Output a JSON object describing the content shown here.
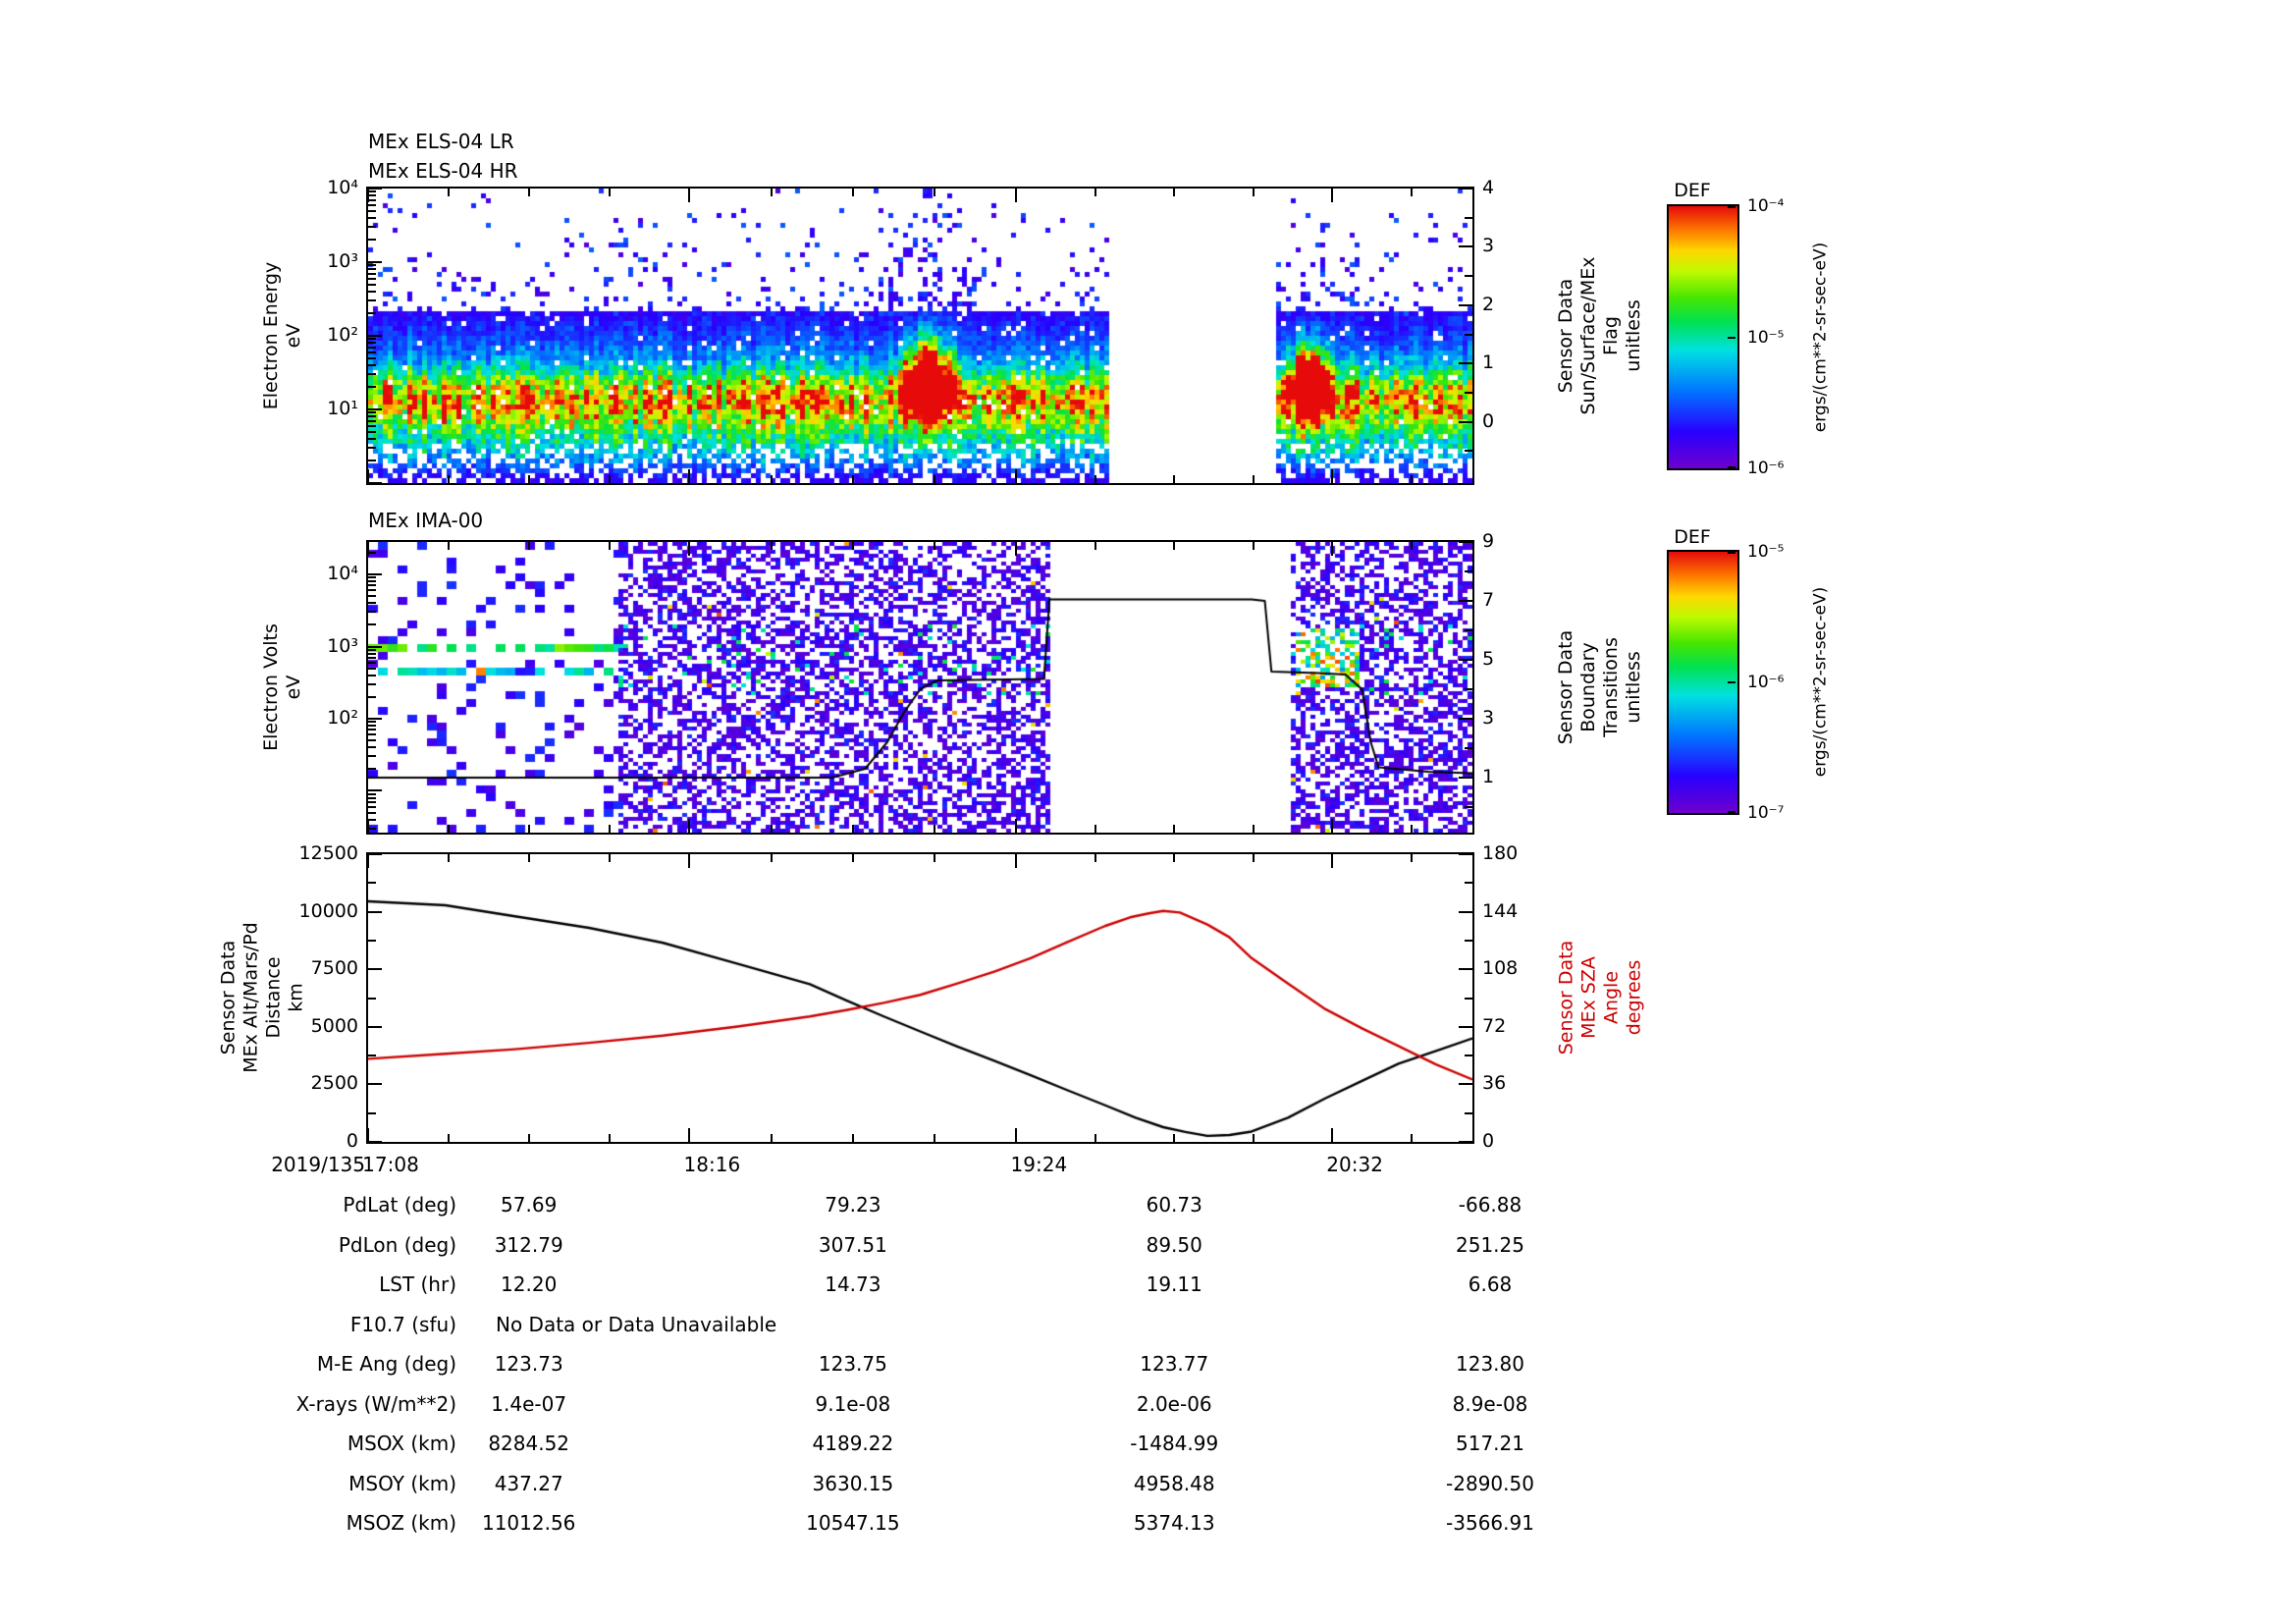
{
  "page": {
    "bg": "#ffffff"
  },
  "colormap": [
    "#6e00cd",
    "#2800ff",
    "#0078ff",
    "#00e1e1",
    "#00e150",
    "#46e600",
    "#befa00",
    "#ffd700",
    "#ff8200",
    "#e60a0a"
  ],
  "els": {
    "titles": [
      "MEx ELS-04 LR",
      "MEx ELS-04 HR"
    ],
    "ylabel": [
      "Electron Energy",
      "eV"
    ],
    "yticks": [
      "10⁴",
      "10³",
      "10²",
      "10¹"
    ],
    "right_label": [
      "Sensor Data",
      "Sun/Surface/MEx",
      "Flag",
      "unitless"
    ],
    "right_ticks": [
      "4",
      "3",
      "2",
      "1",
      "0"
    ]
  },
  "ima": {
    "title": "MEx IMA-00",
    "ylabel": [
      "Electron Volts",
      "eV"
    ],
    "yticks": [
      "10⁴",
      "10³",
      "10²"
    ],
    "right_label": [
      "Sensor Data",
      "Boundary",
      "Transitions",
      "unitless"
    ],
    "right_ticks": [
      "9",
      "7",
      "5",
      "3",
      "1"
    ]
  },
  "dist": {
    "left_label": [
      "Sensor Data",
      "MEx Alt/Mars/Pd",
      "Distance",
      "km"
    ],
    "yticks": [
      "12500",
      "10000",
      "7500",
      "5000",
      "2500",
      "0"
    ],
    "right_label": [
      "Sensor Data",
      "MEx SZA",
      "Angle",
      "degrees"
    ],
    "right_ticks": [
      "180",
      "144",
      "108",
      "72",
      "36",
      "0"
    ],
    "right_color": "#cc0000"
  },
  "xaxis": {
    "date": "2019/135",
    "ticks": [
      "17:08",
      "18:16",
      "19:24",
      "20:32"
    ],
    "fractions": [
      0,
      0.291,
      0.587,
      0.873
    ]
  },
  "colorbars": [
    {
      "title": "DEF",
      "ticks": [
        "10⁻⁴",
        "10⁻⁵",
        "10⁻⁶"
      ],
      "unit": "ergs/(cm**2-sr-sec-eV)"
    },
    {
      "title": "DEF",
      "ticks": [
        "10⁻⁵",
        "10⁻⁶",
        "10⁻⁷"
      ],
      "unit": "ergs/(cm**2-sr-sec-eV)"
    }
  ],
  "table": {
    "rows": [
      {
        "label": "PdLat (deg)",
        "values": [
          "57.69",
          "79.23",
          "60.73",
          "-66.88"
        ]
      },
      {
        "label": "PdLon (deg)",
        "values": [
          "312.79",
          "307.51",
          "89.50",
          "251.25"
        ]
      },
      {
        "label": "LST (hr)",
        "values": [
          "12.20",
          "14.73",
          "19.11",
          "6.68"
        ]
      },
      {
        "label": "F10.7 (sfu)",
        "values": [
          "No Data or Data Unavailable"
        ],
        "span": true
      },
      {
        "label": "M-E Ang (deg)",
        "values": [
          "123.73",
          "123.75",
          "123.77",
          "123.80"
        ]
      },
      {
        "label": "X-rays (W/m**2)",
        "values": [
          "1.4e-07",
          "9.1e-08",
          "2.0e-06",
          "8.9e-08"
        ]
      },
      {
        "label": "MSOX (km)",
        "values": [
          "8284.52",
          "4189.22",
          "-1484.99",
          "517.21"
        ]
      },
      {
        "label": "MSOY (km)",
        "values": [
          "437.27",
          "3630.15",
          "4958.48",
          "-2890.50"
        ]
      },
      {
        "label": "MSOZ (km)",
        "values": [
          "11012.56",
          "10547.15",
          "5374.13",
          "-3566.91"
        ]
      }
    ]
  },
  "chart_data": [
    {
      "type": "heatmap",
      "title": "MEx ELS-04 LR / MEx ELS-04 HR",
      "ylabel": "Electron Energy (eV)",
      "yscale": "log",
      "yrange": [
        1,
        10000
      ],
      "xticks": [
        "17:08",
        "18:16",
        "19:24",
        "20:32"
      ],
      "zunits": "ergs/(cm**2-sr-sec-eV)",
      "zrange": [
        1e-06,
        0.0001
      ],
      "model": {
        "gap": [
          0.671,
          0.822
        ],
        "band": [
          {
            "c": 1.12,
            "w": 0.4,
            "a": 0.62
          },
          {
            "c": 1.6,
            "w": 0.85,
            "a": 0.26
          },
          {
            "c": 0.5,
            "w": 0.45,
            "a": 0.33
          }
        ],
        "blobs": [
          {
            "x": 0.507,
            "xw": 0.018,
            "c": 1.55,
            "cw": 0.55,
            "a": 2.8
          },
          {
            "x": 0.853,
            "xw": 0.015,
            "c": 1.45,
            "cw": 0.5,
            "a": 2.6
          }
        ],
        "speckle": {
          "p0": 0.3,
          "decay": 0.75
        }
      }
    },
    {
      "type": "heatmap",
      "title": "MEx IMA-00",
      "ylabel": "Electron Volts (eV)",
      "yscale": "log",
      "yrange": [
        2.6,
        28000
      ],
      "zunits": "ergs/(cm**2-sr-sec-eV)",
      "zrange": [
        1e-07,
        1e-05
      ],
      "model": {
        "gap": [
          0.618,
          0.834
        ],
        "left_end": 0.225,
        "lines": [
          {
            "c": 3.02,
            "w": 0.08,
            "p": 0.78,
            "v0": 0.45,
            "v1": 0.72,
            "red": 0.05
          },
          {
            "c": 2.67,
            "w": 0.08,
            "p": 0.6,
            "v0": 0.35,
            "v1": 0.55,
            "red": 0.1
          }
        ],
        "cluster": {
          "x": [
            0.838,
            0.9
          ],
          "c": 2.85,
          "w": 0.4,
          "p": 0.55
        }
      },
      "boundary_line": {
        "name": "Sensor Data Boundary Transitions",
        "axis": "right",
        "range": [
          0,
          9
        ],
        "points": [
          [
            0,
            1.0
          ],
          [
            0.42,
            1.0
          ],
          [
            0.45,
            1.3
          ],
          [
            0.47,
            2.2
          ],
          [
            0.485,
            3.2
          ],
          [
            0.5,
            4.0
          ],
          [
            0.515,
            4.3
          ],
          [
            0.612,
            4.35
          ],
          [
            0.617,
            7.05
          ],
          [
            0.8,
            7.05
          ],
          [
            0.812,
            7.0
          ],
          [
            0.818,
            4.6
          ],
          [
            0.86,
            4.55
          ],
          [
            0.885,
            4.5
          ],
          [
            0.9,
            4.0
          ],
          [
            0.908,
            2.2
          ],
          [
            0.915,
            1.35
          ],
          [
            0.96,
            1.2
          ],
          [
            1,
            1.15
          ]
        ]
      }
    },
    {
      "type": "line",
      "ylim_left": [
        0,
        12500
      ],
      "ylim_right": [
        0,
        180
      ],
      "series": [
        {
          "name": "MEx Alt/Mars/Pd Distance (km)",
          "axis": "left",
          "color": "#000000",
          "points": [
            [
              0,
              10450
            ],
            [
              0.07,
              10280
            ],
            [
              0.133,
              9800
            ],
            [
              0.2,
              9300
            ],
            [
              0.267,
              8650
            ],
            [
              0.33,
              7800
            ],
            [
              0.4,
              6850
            ],
            [
              0.433,
              6150
            ],
            [
              0.467,
              5450
            ],
            [
              0.5,
              4800
            ],
            [
              0.533,
              4150
            ],
            [
              0.567,
              3520
            ],
            [
              0.6,
              2900
            ],
            [
              0.633,
              2250
            ],
            [
              0.667,
              1600
            ],
            [
              0.695,
              1050
            ],
            [
              0.72,
              640
            ],
            [
              0.74,
              430
            ],
            [
              0.76,
              260
            ],
            [
              0.78,
              300
            ],
            [
              0.8,
              450
            ],
            [
              0.833,
              1050
            ],
            [
              0.867,
              1900
            ],
            [
              0.9,
              2650
            ],
            [
              0.933,
              3400
            ],
            [
              0.967,
              3950
            ],
            [
              1,
              4500
            ]
          ]
        },
        {
          "name": "MEx SZA Angle (degrees)",
          "axis": "right",
          "color": "#cc0000",
          "points": [
            [
              0,
              52
            ],
            [
              0.067,
              55
            ],
            [
              0.133,
              58
            ],
            [
              0.2,
              62
            ],
            [
              0.267,
              66.5
            ],
            [
              0.333,
              72
            ],
            [
              0.4,
              78.5
            ],
            [
              0.433,
              82.5
            ],
            [
              0.467,
              87
            ],
            [
              0.5,
              92
            ],
            [
              0.533,
              99
            ],
            [
              0.567,
              106.5
            ],
            [
              0.6,
              115
            ],
            [
              0.633,
              125
            ],
            [
              0.667,
              135
            ],
            [
              0.69,
              140.5
            ],
            [
              0.707,
              143
            ],
            [
              0.72,
              144.5
            ],
            [
              0.735,
              143.5
            ],
            [
              0.76,
              136
            ],
            [
              0.78,
              128
            ],
            [
              0.8,
              115
            ],
            [
              0.833,
              99
            ],
            [
              0.867,
              83
            ],
            [
              0.9,
              71
            ],
            [
              0.933,
              60
            ],
            [
              0.967,
              48.5
            ],
            [
              1,
              39
            ]
          ]
        }
      ]
    }
  ]
}
